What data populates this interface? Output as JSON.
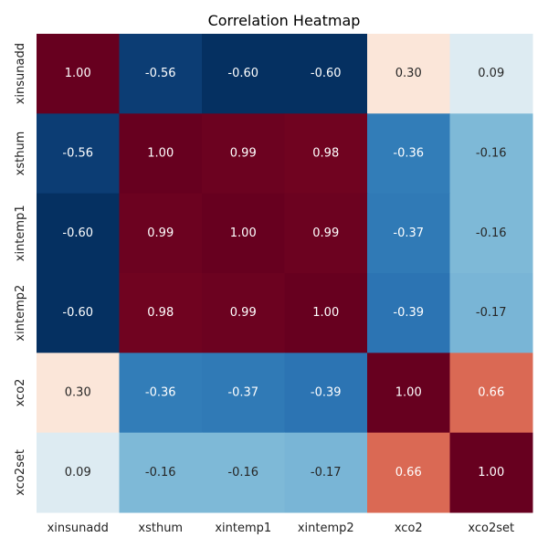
{
  "chart_data": {
    "type": "heatmap",
    "title": "Correlation Heatmap",
    "xlabel": "",
    "ylabel": "",
    "categories": [
      "xinsunadd",
      "xsthum",
      "xintemp1",
      "xintemp2",
      "xco2",
      "xco2set"
    ],
    "matrix": [
      [
        1.0,
        -0.56,
        -0.6,
        -0.6,
        0.3,
        0.09
      ],
      [
        -0.56,
        1.0,
        0.99,
        0.98,
        -0.36,
        -0.16
      ],
      [
        -0.6,
        0.99,
        1.0,
        0.99,
        -0.37,
        -0.16
      ],
      [
        -0.6,
        0.98,
        0.99,
        1.0,
        -0.39,
        -0.17
      ],
      [
        0.3,
        -0.36,
        -0.37,
        -0.39,
        1.0,
        0.66
      ],
      [
        0.09,
        -0.16,
        -0.16,
        -0.17,
        0.66,
        1.0
      ]
    ],
    "annotations": [
      [
        "1.00",
        "-0.56",
        "-0.60",
        "-0.60",
        "0.30",
        "0.09"
      ],
      [
        "-0.56",
        "1.00",
        "0.99",
        "0.98",
        "-0.36",
        "-0.16"
      ],
      [
        "-0.60",
        "0.99",
        "1.00",
        "0.99",
        "-0.37",
        "-0.16"
      ],
      [
        "-0.60",
        "0.98",
        "0.99",
        "1.00",
        "-0.39",
        "-0.17"
      ],
      [
        "0.30",
        "-0.36",
        "-0.37",
        "-0.39",
        "1.00",
        "0.66"
      ],
      [
        "0.09",
        "-0.16",
        "-0.16",
        "-0.17",
        "0.66",
        "1.00"
      ]
    ],
    "colormap": "RdBu_r",
    "vmin": -0.6,
    "vmax": 1.0,
    "colorbar": false,
    "grid": false
  }
}
